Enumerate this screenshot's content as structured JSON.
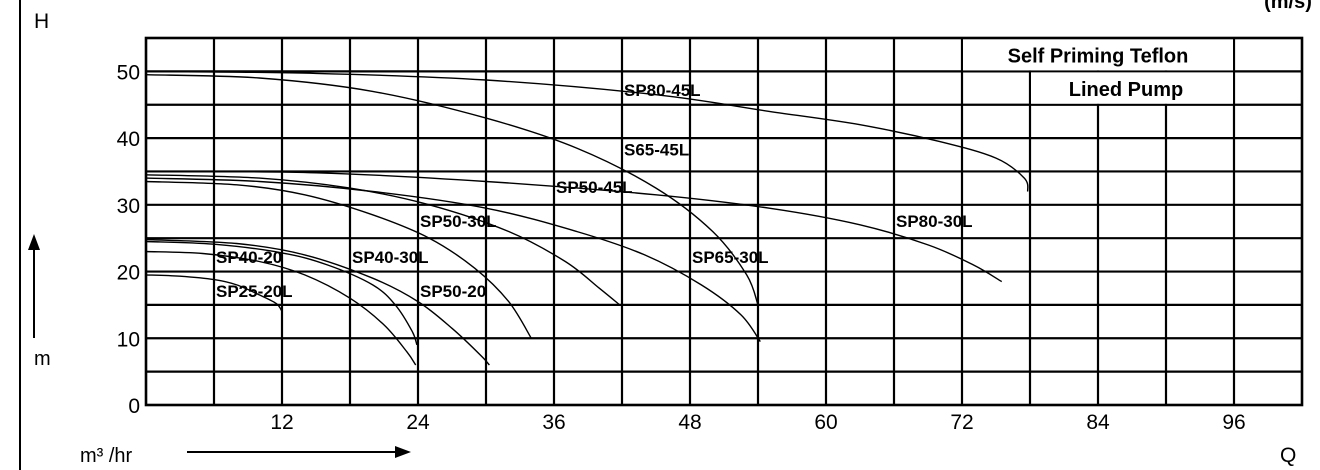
{
  "chart_data": {
    "type": "line",
    "title": "Self Priming Teflon Lined Pump",
    "title_lines": [
      "Self Priming Teflon",
      "Lined Pump"
    ],
    "corner_text": "(m/s)",
    "ylabel_top": "H",
    "ylabel_unit": "m",
    "xlabel_end": "Q",
    "xlabel_unit": "m³ /hr",
    "xlim": [
      0,
      102
    ],
    "ylim": [
      0,
      55
    ],
    "x_ticks": [
      12,
      24,
      36,
      48,
      60,
      72,
      84,
      96
    ],
    "y_ticks": [
      0,
      10,
      20,
      30,
      40,
      50
    ],
    "grid": true,
    "series": [
      {
        "name": "SP25-20L",
        "x": [
          0,
          3,
          6,
          8,
          10,
          11.5,
          12
        ],
        "y": [
          19.5,
          19.3,
          18.8,
          18,
          16.5,
          15.2,
          14
        ]
      },
      {
        "name": "SP40-20",
        "x": [
          0,
          5,
          10,
          14,
          18,
          21,
          23,
          23.8
        ],
        "y": [
          23,
          22.7,
          21.5,
          19.5,
          16,
          12,
          8,
          6
        ]
      },
      {
        "name": "SP40-30L",
        "x": [
          0,
          6,
          12,
          16,
          20,
          22,
          23.5,
          23.9
        ],
        "y": [
          24.5,
          24.1,
          22.8,
          21,
          18,
          15,
          11,
          9
        ]
      },
      {
        "name": "SP50-20",
        "x": [
          0,
          8,
          14,
          20,
          24,
          27,
          29.5,
          30.3
        ],
        "y": [
          24.8,
          24.2,
          22.5,
          19,
          15.5,
          11.5,
          7.5,
          6
        ]
      },
      {
        "name": "SP50-30L",
        "x": [
          0,
          8,
          14,
          20,
          25,
          29,
          32,
          34
        ],
        "y": [
          33.5,
          33,
          31.5,
          28.5,
          25,
          20.5,
          15.5,
          10
        ]
      },
      {
        "name": "SP50-45L",
        "x": [
          0,
          10,
          18,
          25,
          32,
          37,
          40,
          41.8
        ],
        "y": [
          34.5,
          34,
          32.5,
          30,
          26,
          21.5,
          17.5,
          15
        ]
      },
      {
        "name": "SP65-30L",
        "x": [
          0,
          10,
          20,
          30,
          38,
          44,
          49,
          52.5,
          54.2
        ],
        "y": [
          34,
          33.5,
          32,
          29.5,
          26,
          22.5,
          18,
          13.5,
          9.5
        ]
      },
      {
        "name": "S65-45L",
        "x": [
          0,
          10,
          20,
          30,
          38,
          45,
          50,
          53,
          54
        ],
        "y": [
          49.5,
          49,
          47,
          43,
          38.5,
          32.5,
          26,
          19.5,
          15
        ]
      },
      {
        "name": "SP80-30L",
        "x": [
          0,
          15,
          30,
          45,
          55,
          63,
          69,
          73,
          75.5
        ],
        "y": [
          35,
          34.8,
          33.5,
          31.5,
          29.5,
          27,
          24,
          21,
          18.5
        ]
      },
      {
        "name": "SP80-45L",
        "x": [
          0,
          15,
          30,
          45,
          55,
          63,
          70,
          75,
          77.5,
          77.8
        ],
        "y": [
          50,
          49.7,
          48.7,
          46.5,
          44,
          42,
          39.5,
          37,
          34,
          32
        ]
      }
    ],
    "labels": [
      {
        "text": "SP80-45L",
        "x": 42,
        "y": 46.3
      },
      {
        "text": "S65-45L",
        "x": 42,
        "y": 37.4
      },
      {
        "text": "SP50-45L",
        "x": 36,
        "y": 31.8
      },
      {
        "text": "SP50-30L",
        "x": 24,
        "y": 26.7
      },
      {
        "text": "SP80-30L",
        "x": 66,
        "y": 26.7
      },
      {
        "text": "SP40-20",
        "x": 6,
        "y": 21.3
      },
      {
        "text": "SP40-30L",
        "x": 18,
        "y": 21.3
      },
      {
        "text": "SP65-30L",
        "x": 48,
        "y": 21.3
      },
      {
        "text": "SP25-20L",
        "x": 6,
        "y": 16.2
      },
      {
        "text": "SP50-20",
        "x": 24,
        "y": 16.2
      }
    ]
  }
}
